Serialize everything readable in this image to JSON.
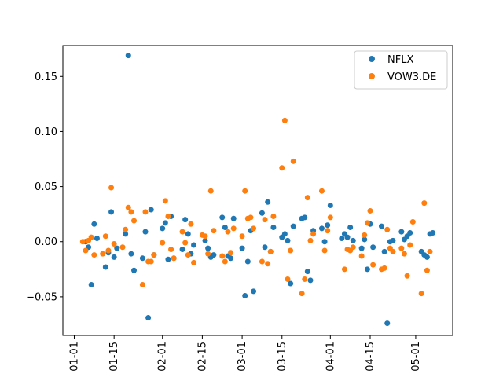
{
  "chart_data": {
    "type": "scatter",
    "title": "",
    "xlabel": "",
    "ylabel": "",
    "x_ticks": [
      "01-01",
      "01-15",
      "02-01",
      "02-15",
      "03-01",
      "03-15",
      "04-01",
      "04-15",
      "05-01"
    ],
    "y_ticks": [
      "−0.05",
      "0.00",
      "0.05",
      "0.10",
      "0.15"
    ],
    "x_range": [
      "2020-12-28",
      "2021-05-14"
    ],
    "ylim": [
      -0.085,
      0.178
    ],
    "grid": false,
    "legend_position": "upper right",
    "series": [
      {
        "name": "NFLX",
        "color": "#1f77b4",
        "points": [
          [
            "2021-01-05",
            0.0
          ],
          [
            "2021-01-06",
            -0.005
          ],
          [
            "2021-01-07",
            -0.039
          ],
          [
            "2021-01-08",
            0.016
          ],
          [
            "2021-01-09",
            0.003
          ],
          [
            "2021-01-12",
            -0.023
          ],
          [
            "2021-01-13",
            -0.01
          ],
          [
            "2021-01-14",
            0.027
          ],
          [
            "2021-01-15",
            -0.014
          ],
          [
            "2021-01-16",
            -0.006
          ],
          [
            "2021-01-19",
            0.007
          ],
          [
            "2021-01-20",
            0.169
          ],
          [
            "2021-01-21",
            -0.011
          ],
          [
            "2021-01-22",
            -0.026
          ],
          [
            "2021-01-25",
            -0.015
          ],
          [
            "2021-01-26",
            0.009
          ],
          [
            "2021-01-27",
            -0.069
          ],
          [
            "2021-01-28",
            0.029
          ],
          [
            "2021-01-29",
            -0.012
          ],
          [
            "2021-02-01",
            0.012
          ],
          [
            "2021-02-02",
            0.017
          ],
          [
            "2021-02-03",
            -0.016
          ],
          [
            "2021-02-04",
            0.023
          ],
          [
            "2021-02-05",
            -0.015
          ],
          [
            "2021-02-08",
            -0.007
          ],
          [
            "2021-02-09",
            0.02
          ],
          [
            "2021-02-10",
            0.007
          ],
          [
            "2021-02-11",
            -0.011
          ],
          [
            "2021-02-12",
            -0.003
          ],
          [
            "2021-02-16",
            0.001
          ],
          [
            "2021-02-17",
            -0.006
          ],
          [
            "2021-02-18",
            -0.014
          ],
          [
            "2021-02-19",
            -0.012
          ],
          [
            "2021-02-22",
            0.022
          ],
          [
            "2021-02-23",
            0.013
          ],
          [
            "2021-02-24",
            -0.013
          ],
          [
            "2021-02-25",
            -0.015
          ],
          [
            "2021-02-26",
            0.021
          ],
          [
            "2021-03-01",
            -0.006
          ],
          [
            "2021-03-02",
            -0.049
          ],
          [
            "2021-03-03",
            -0.018
          ],
          [
            "2021-03-04",
            0.01
          ],
          [
            "2021-03-05",
            -0.045
          ],
          [
            "2021-03-08",
            0.026
          ],
          [
            "2021-03-09",
            -0.005
          ],
          [
            "2021-03-10",
            0.036
          ],
          [
            "2021-03-11",
            -0.009
          ],
          [
            "2021-03-12",
            0.013
          ],
          [
            "2021-03-15",
            0.004
          ],
          [
            "2021-03-16",
            0.007
          ],
          [
            "2021-03-17",
            0.001
          ],
          [
            "2021-03-18",
            -0.038
          ],
          [
            "2021-03-19",
            0.014
          ],
          [
            "2021-03-22",
            0.021
          ],
          [
            "2021-03-23",
            0.022
          ],
          [
            "2021-03-24",
            -0.027
          ],
          [
            "2021-03-25",
            -0.035
          ],
          [
            "2021-03-26",
            0.01
          ],
          [
            "2021-03-29",
            0.012
          ],
          [
            "2021-03-30",
            0.0
          ],
          [
            "2021-03-31",
            0.015
          ],
          [
            "2021-04-01",
            0.033
          ],
          [
            "2021-04-05",
            0.003
          ],
          [
            "2021-04-06",
            0.007
          ],
          [
            "2021-04-07",
            0.004
          ],
          [
            "2021-04-08",
            0.013
          ],
          [
            "2021-04-09",
            0.001
          ],
          [
            "2021-04-12",
            -0.006
          ],
          [
            "2021-04-13",
            0.002
          ],
          [
            "2021-04-14",
            -0.025
          ],
          [
            "2021-04-15",
            0.016
          ],
          [
            "2021-04-16",
            -0.005
          ],
          [
            "2021-04-19",
            0.014
          ],
          [
            "2021-04-20",
            -0.009
          ],
          [
            "2021-04-21",
            -0.074
          ],
          [
            "2021-04-22",
            0.0
          ],
          [
            "2021-04-23",
            0.001
          ],
          [
            "2021-04-26",
            0.009
          ],
          [
            "2021-04-27",
            0.002
          ],
          [
            "2021-04-28",
            0.005
          ],
          [
            "2021-04-29",
            0.008
          ],
          [
            "2021-05-03",
            -0.009
          ],
          [
            "2021-05-04",
            -0.012
          ],
          [
            "2021-05-05",
            -0.014
          ],
          [
            "2021-05-06",
            0.007
          ],
          [
            "2021-05-07",
            0.008
          ]
        ]
      },
      {
        "name": "VOW3.DE",
        "color": "#ff7f0e",
        "points": [
          [
            "2021-01-04",
            0.0
          ],
          [
            "2021-01-05",
            -0.008
          ],
          [
            "2021-01-06",
            0.001
          ],
          [
            "2021-01-07",
            0.004
          ],
          [
            "2021-01-08",
            -0.012
          ],
          [
            "2021-01-11",
            -0.011
          ],
          [
            "2021-01-12",
            0.005
          ],
          [
            "2021-01-13",
            -0.008
          ],
          [
            "2021-01-14",
            0.049
          ],
          [
            "2021-01-15",
            -0.002
          ],
          [
            "2021-01-18",
            -0.005
          ],
          [
            "2021-01-19",
            0.011
          ],
          [
            "2021-01-20",
            0.031
          ],
          [
            "2021-01-21",
            0.027
          ],
          [
            "2021-01-22",
            0.019
          ],
          [
            "2021-01-25",
            -0.039
          ],
          [
            "2021-01-26",
            0.027
          ],
          [
            "2021-01-27",
            -0.018
          ],
          [
            "2021-01-28",
            -0.018
          ],
          [
            "2021-01-29",
            -0.012
          ],
          [
            "2021-02-01",
            -0.001
          ],
          [
            "2021-02-02",
            0.037
          ],
          [
            "2021-02-03",
            0.023
          ],
          [
            "2021-02-04",
            -0.007
          ],
          [
            "2021-02-05",
            -0.015
          ],
          [
            "2021-02-08",
            0.009
          ],
          [
            "2021-02-09",
            -0.001
          ],
          [
            "2021-02-10",
            -0.012
          ],
          [
            "2021-02-11",
            0.016
          ],
          [
            "2021-02-12",
            -0.019
          ],
          [
            "2021-02-15",
            0.006
          ],
          [
            "2021-02-16",
            0.005
          ],
          [
            "2021-02-17",
            -0.011
          ],
          [
            "2021-02-18",
            0.046
          ],
          [
            "2021-02-19",
            0.01
          ],
          [
            "2021-02-22",
            -0.013
          ],
          [
            "2021-02-23",
            -0.018
          ],
          [
            "2021-02-24",
            0.009
          ],
          [
            "2021-02-25",
            -0.01
          ],
          [
            "2021-02-26",
            0.012
          ],
          [
            "2021-03-01",
            0.005
          ],
          [
            "2021-03-02",
            0.046
          ],
          [
            "2021-03-03",
            0.021
          ],
          [
            "2021-03-04",
            0.022
          ],
          [
            "2021-03-05",
            0.012
          ],
          [
            "2021-03-08",
            -0.018
          ],
          [
            "2021-03-09",
            0.02
          ],
          [
            "2021-03-10",
            -0.02
          ],
          [
            "2021-03-11",
            -0.009
          ],
          [
            "2021-03-12",
            0.023
          ],
          [
            "2021-03-15",
            0.067
          ],
          [
            "2021-03-16",
            0.11
          ],
          [
            "2021-03-17",
            -0.034
          ],
          [
            "2021-03-18",
            -0.008
          ],
          [
            "2021-03-19",
            0.073
          ],
          [
            "2021-03-22",
            -0.047
          ],
          [
            "2021-03-23",
            -0.034
          ],
          [
            "2021-03-24",
            0.04
          ],
          [
            "2021-03-25",
            0.001
          ],
          [
            "2021-03-26",
            0.007
          ],
          [
            "2021-03-29",
            0.046
          ],
          [
            "2021-03-30",
            -0.008
          ],
          [
            "2021-03-31",
            0.01
          ],
          [
            "2021-04-01",
            0.022
          ],
          [
            "2021-04-06",
            -0.025
          ],
          [
            "2021-04-07",
            -0.007
          ],
          [
            "2021-04-08",
            -0.008
          ],
          [
            "2021-04-09",
            -0.005
          ],
          [
            "2021-04-12",
            -0.013
          ],
          [
            "2021-04-13",
            0.006
          ],
          [
            "2021-04-14",
            0.017
          ],
          [
            "2021-04-15",
            0.028
          ],
          [
            "2021-04-16",
            -0.021
          ],
          [
            "2021-04-19",
            -0.025
          ],
          [
            "2021-04-20",
            -0.024
          ],
          [
            "2021-04-21",
            0.011
          ],
          [
            "2021-04-22",
            -0.006
          ],
          [
            "2021-04-23",
            -0.009
          ],
          [
            "2021-04-26",
            -0.006
          ],
          [
            "2021-04-27",
            -0.011
          ],
          [
            "2021-04-28",
            -0.031
          ],
          [
            "2021-04-29",
            -0.003
          ],
          [
            "2021-04-30",
            0.018
          ],
          [
            "2021-05-03",
            -0.047
          ],
          [
            "2021-05-04",
            0.035
          ],
          [
            "2021-05-05",
            -0.026
          ],
          [
            "2021-05-06",
            -0.009
          ]
        ]
      }
    ]
  }
}
